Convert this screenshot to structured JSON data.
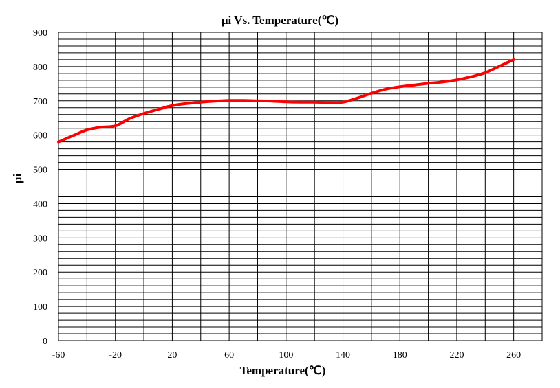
{
  "chart_data": {
    "type": "line",
    "title": "μi Vs. Temperature(℃)",
    "xlabel": "Temperature(℃)",
    "ylabel": "μi",
    "xlim": [
      -60,
      280
    ],
    "ylim": [
      0,
      900
    ],
    "x_ticks": [
      -60,
      -20,
      20,
      60,
      100,
      140,
      180,
      220,
      260
    ],
    "y_ticks": [
      0,
      100,
      200,
      300,
      400,
      500,
      600,
      700,
      800,
      900
    ],
    "x_grid_step": 20,
    "y_grid_step": 20,
    "grid": true,
    "legend": "none",
    "series": [
      {
        "color": "#ff0000",
        "x": [
          -60,
          -50,
          -40,
          -30,
          -20,
          -10,
          0,
          10,
          20,
          30,
          40,
          50,
          60,
          70,
          80,
          90,
          100,
          110,
          120,
          130,
          140,
          150,
          160,
          170,
          180,
          190,
          200,
          210,
          220,
          230,
          240,
          250,
          260
        ],
        "y": [
          580,
          598,
          615,
          623,
          627,
          648,
          663,
          675,
          686,
          692,
          696,
          699,
          701,
          701,
          700,
          699,
          697,
          696,
          696,
          695,
          696,
          708,
          722,
          734,
          741,
          746,
          751,
          755,
          761,
          770,
          782,
          801,
          820
        ]
      }
    ]
  }
}
